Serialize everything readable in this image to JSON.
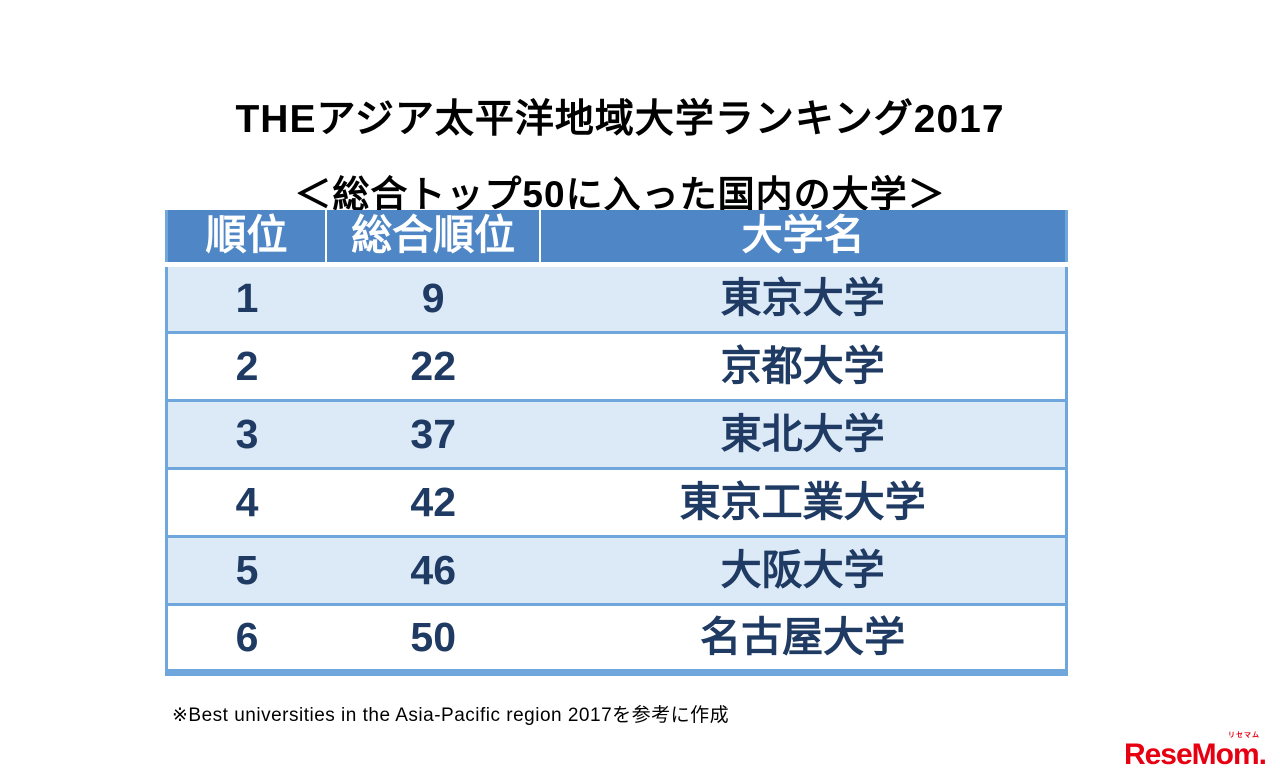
{
  "page": {
    "title_line1": "THEアジア太平洋地域大学ランキング2017",
    "title_line2": "＜総合トップ50に入った国内の大学＞",
    "footnote": "※Best universities in the Asia-Pacific region 2017を参考に作成",
    "logo": {
      "text": "ReseMom.",
      "kana": "リセマム"
    }
  },
  "colors": {
    "header_bg": "#4f86c6",
    "band_bg": "#dce9f7",
    "row_text": "#1f3b63",
    "border_blue": "#6fa7dd",
    "logo_red": "#e60012"
  },
  "table": {
    "headers": [
      "順位",
      "総合順位",
      "大学名"
    ],
    "rows": [
      [
        "1",
        "9",
        "東京大学"
      ],
      [
        "2",
        "22",
        "京都大学"
      ],
      [
        "3",
        "37",
        "東北大学"
      ],
      [
        "4",
        "42",
        "東京工業大学"
      ],
      [
        "5",
        "46",
        "大阪大学"
      ],
      [
        "6",
        "50",
        "名古屋大学"
      ]
    ]
  },
  "chart_data": {
    "type": "table",
    "title": "THEアジア太平洋地域大学ランキング2017 ＜総合トップ50に入った国内の大学＞",
    "columns": [
      "順位",
      "総合順位",
      "大学名"
    ],
    "rows": [
      [
        1,
        9,
        "東京大学"
      ],
      [
        2,
        22,
        "京都大学"
      ],
      [
        3,
        37,
        "東北大学"
      ],
      [
        4,
        42,
        "東京工業大学"
      ],
      [
        5,
        46,
        "大阪大学"
      ],
      [
        6,
        50,
        "名古屋大学"
      ]
    ],
    "note": "※Best universities in the Asia-Pacific region 2017を参考に作成"
  }
}
